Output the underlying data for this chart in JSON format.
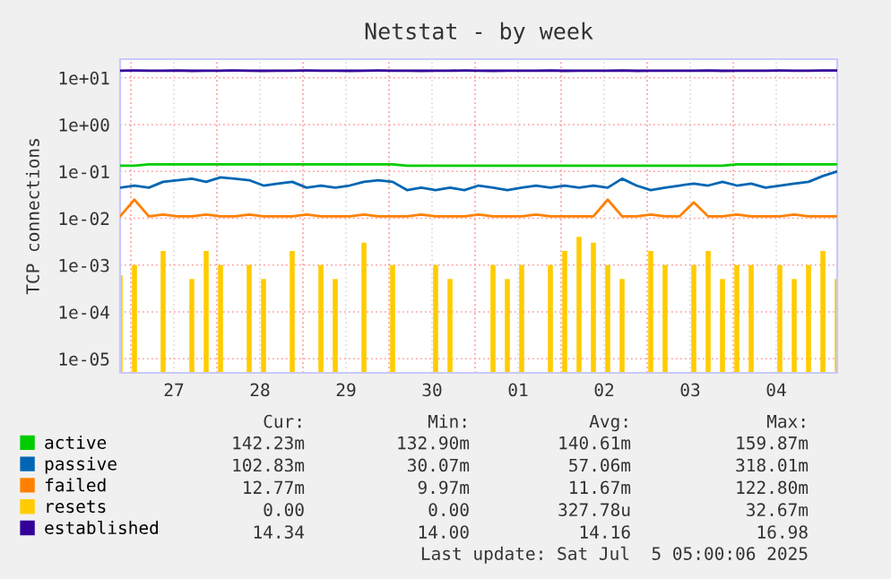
{
  "chart_data": {
    "type": "line",
    "title": "Netstat - by week",
    "ylabel": "TCP connections",
    "x": [
      "2025-06-26T21:00",
      "2025-06-27T01:00",
      "2025-06-27T05:00",
      "2025-06-27T09:00",
      "2025-06-27T13:00",
      "2025-06-27T17:00",
      "2025-06-27T21:00",
      "2025-06-28T01:00",
      "2025-06-28T05:00",
      "2025-06-28T09:00",
      "2025-06-28T13:00",
      "2025-06-28T17:00",
      "2025-06-28T21:00",
      "2025-06-29T01:00",
      "2025-06-29T05:00",
      "2025-06-29T09:00",
      "2025-06-29T13:00",
      "2025-06-29T17:00",
      "2025-06-29T21:00",
      "2025-06-30T01:00",
      "2025-06-30T05:00",
      "2025-06-30T09:00",
      "2025-06-30T13:00",
      "2025-06-30T17:00",
      "2025-06-30T21:00",
      "2025-07-01T01:00",
      "2025-07-01T05:00",
      "2025-07-01T09:00",
      "2025-07-01T13:00",
      "2025-07-01T17:00",
      "2025-07-01T21:00",
      "2025-07-02T01:00",
      "2025-07-02T05:00",
      "2025-07-02T09:00",
      "2025-07-02T13:00",
      "2025-07-02T17:00",
      "2025-07-02T21:00",
      "2025-07-03T01:00",
      "2025-07-03T05:00",
      "2025-07-03T09:00",
      "2025-07-03T13:00",
      "2025-07-03T17:00",
      "2025-07-03T21:00",
      "2025-07-04T01:00",
      "2025-07-04T05:00",
      "2025-07-04T09:00",
      "2025-07-04T13:00",
      "2025-07-04T17:00",
      "2025-07-04T21:00",
      "2025-07-05T01:00",
      "2025-07-05T05:00"
    ],
    "series": [
      {
        "name": "active",
        "color": "#00cc00",
        "values": [
          0.133,
          0.133,
          0.142,
          0.142,
          0.142,
          0.142,
          0.142,
          0.142,
          0.142,
          0.142,
          0.142,
          0.142,
          0.142,
          0.142,
          0.142,
          0.142,
          0.142,
          0.142,
          0.142,
          0.142,
          0.133,
          0.133,
          0.133,
          0.133,
          0.133,
          0.133,
          0.133,
          0.133,
          0.133,
          0.133,
          0.133,
          0.133,
          0.133,
          0.133,
          0.133,
          0.133,
          0.133,
          0.133,
          0.133,
          0.133,
          0.133,
          0.133,
          0.133,
          0.142,
          0.142,
          0.142,
          0.142,
          0.142,
          0.142,
          0.142,
          0.142
        ]
      },
      {
        "name": "passive",
        "color": "#0066b3",
        "values": [
          0.045,
          0.05,
          0.045,
          0.06,
          0.065,
          0.07,
          0.06,
          0.075,
          0.07,
          0.065,
          0.05,
          0.055,
          0.06,
          0.045,
          0.05,
          0.045,
          0.05,
          0.06,
          0.065,
          0.06,
          0.04,
          0.045,
          0.04,
          0.045,
          0.04,
          0.05,
          0.045,
          0.04,
          0.045,
          0.05,
          0.045,
          0.05,
          0.045,
          0.05,
          0.045,
          0.07,
          0.05,
          0.04,
          0.045,
          0.05,
          0.055,
          0.05,
          0.06,
          0.05,
          0.055,
          0.045,
          0.05,
          0.055,
          0.06,
          0.08,
          0.1
        ]
      },
      {
        "name": "failed",
        "color": "#ff8000",
        "values": [
          0.011,
          0.025,
          0.011,
          0.012,
          0.011,
          0.011,
          0.012,
          0.011,
          0.011,
          0.012,
          0.011,
          0.011,
          0.011,
          0.012,
          0.011,
          0.011,
          0.011,
          0.012,
          0.011,
          0.011,
          0.011,
          0.012,
          0.011,
          0.011,
          0.011,
          0.012,
          0.011,
          0.011,
          0.011,
          0.012,
          0.011,
          0.011,
          0.011,
          0.011,
          0.025,
          0.011,
          0.011,
          0.012,
          0.011,
          0.011,
          0.022,
          0.011,
          0.011,
          0.012,
          0.011,
          0.011,
          0.011,
          0.012,
          0.011,
          0.011,
          0.011
        ]
      },
      {
        "name": "resets",
        "color": "#ffcc00",
        "type": "bar",
        "values": [
          0.0006,
          0.001,
          null,
          0.002,
          null,
          0.0005,
          0.002,
          0.001,
          null,
          0.001,
          0.0005,
          null,
          0.002,
          null,
          0.001,
          0.0005,
          null,
          0.003,
          null,
          0.001,
          null,
          null,
          0.001,
          0.0005,
          null,
          null,
          0.001,
          0.0005,
          0.001,
          null,
          0.001,
          0.002,
          0.004,
          0.003,
          0.001,
          0.0005,
          null,
          0.002,
          0.001,
          null,
          0.001,
          0.002,
          0.0005,
          0.001,
          0.001,
          null,
          0.001,
          0.0005,
          0.001,
          0.002,
          0.0005
        ]
      },
      {
        "name": "established",
        "color": "#330099",
        "values": [
          14.2,
          14.3,
          14.2,
          14.2,
          14.3,
          14.1,
          14.2,
          14.2,
          14.3,
          14.2,
          14.1,
          14.2,
          14.2,
          14.3,
          14.2,
          14.2,
          14.1,
          14.2,
          14.3,
          14.2,
          14.2,
          14.1,
          14.2,
          14.2,
          14.3,
          14.2,
          14.1,
          14.2,
          14.2,
          14.2,
          14.3,
          14.1,
          14.2,
          14.2,
          14.2,
          14.3,
          14.1,
          14.2,
          14.2,
          14.2,
          14.2,
          14.3,
          14.1,
          14.2,
          14.2,
          14.2,
          14.3,
          14.2,
          14.2,
          14.3,
          14.3
        ]
      }
    ],
    "log": "y",
    "ylim": [
      5e-06,
      25
    ],
    "yticks": [
      {
        "value": 1e-05,
        "label": "1e-05"
      },
      {
        "value": 0.0001,
        "label": "1e-04"
      },
      {
        "value": 0.001,
        "label": "1e-03"
      },
      {
        "value": 0.01,
        "label": "1e-02"
      },
      {
        "value": 0.1,
        "label": "1e-01"
      },
      {
        "value": 1,
        "label": "1e+00"
      },
      {
        "value": 10,
        "label": "1e+01"
      }
    ],
    "xlim": [
      "2025-06-26T21:00",
      "2025-07-05T05:00"
    ],
    "xticks": [
      {
        "value": "2025-06-27T00:00",
        "label": null
      },
      {
        "value": "2025-06-27T12:00",
        "label": "27"
      },
      {
        "value": "2025-06-28T00:00",
        "label": null
      },
      {
        "value": "2025-06-28T12:00",
        "label": "28"
      },
      {
        "value": "2025-06-29T00:00",
        "label": null
      },
      {
        "value": "2025-06-29T12:00",
        "label": "29"
      },
      {
        "value": "2025-06-30T00:00",
        "label": null
      },
      {
        "value": "2025-06-30T12:00",
        "label": "30"
      },
      {
        "value": "2025-07-01T00:00",
        "label": null
      },
      {
        "value": "2025-07-01T12:00",
        "label": "01"
      },
      {
        "value": "2025-07-02T00:00",
        "label": null
      },
      {
        "value": "2025-07-02T12:00",
        "label": "02"
      },
      {
        "value": "2025-07-03T00:00",
        "label": null
      },
      {
        "value": "2025-07-03T12:00",
        "label": "03"
      },
      {
        "value": "2025-07-04T00:00",
        "label": null
      },
      {
        "value": "2025-07-04T12:00",
        "label": "04"
      }
    ],
    "grid": true,
    "legend": "bottom",
    "annotations": [
      "Cur:",
      "Min:",
      "Avg:",
      "Max:",
      "142.23m",
      "132.90m",
      "140.61m",
      "159.87m",
      "102.83m",
      "30.07m",
      "57.06m",
      "318.01m",
      "12.77m",
      "9.97m",
      "11.67m",
      "122.80m",
      "0.00",
      "0.00",
      "327.78u",
      "32.67m",
      "14.34",
      "14.00",
      "14.16",
      "16.98",
      "Last update: Sat Jul  5 05:00:06 2025"
    ]
  }
}
